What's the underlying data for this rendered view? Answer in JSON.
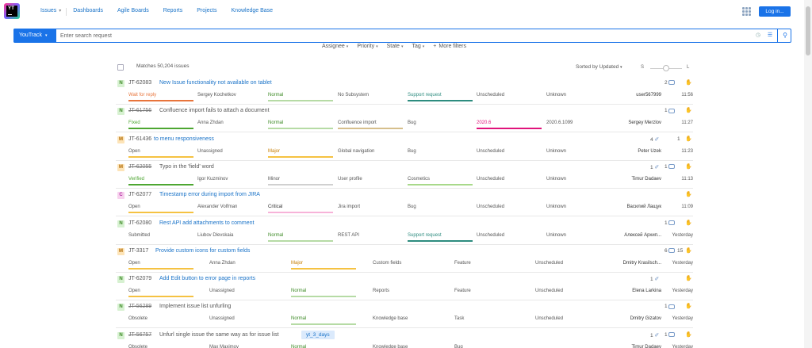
{
  "app": {
    "logo_text": "YT"
  },
  "nav": {
    "issues": "Issues",
    "dashboards": "Dashboards",
    "agile_boards": "Agile Boards",
    "reports": "Reports",
    "projects": "Projects",
    "knowledge_base": "Knowledge Base"
  },
  "header": {
    "login_label": "Log in..."
  },
  "search": {
    "context_label": "YouTrack",
    "placeholder": "Enter search request"
  },
  "filters": {
    "assignee": "Assignee",
    "priority": "Priority",
    "state": "State",
    "tag": "Tag",
    "more": "More filters"
  },
  "list": {
    "matches": "Matches 50,204 issues",
    "sorted": "Sorted by Updated",
    "size_small": "S",
    "size_large": "L"
  },
  "colors": {
    "accent": "#1a73e8",
    "state_wait": "#e8743b",
    "state_fixed": "#4da631",
    "state_open": "#f5c242",
    "state_verified": "#4da631",
    "priority_normal": "#b6dba5",
    "priority_major": "#f5c242",
    "priority_minor": "#d0d0d0",
    "priority_critical": "#f7b3d9",
    "type_support": "#2d8c7f",
    "type_cosmetics": "#a8d98a",
    "version_2020": "#e0137b"
  },
  "issues": [
    {
      "priority_letter": "N",
      "id": "JT-62083",
      "summary": "New Issue functionality not available on tablet",
      "resolved": false,
      "fields": [
        "Wait for reply",
        "Sergey Kochetkov",
        "Normal",
        "No Subsystem",
        "Support request",
        "Unscheduled",
        "Unknown"
      ],
      "attachments": "",
      "comments": "2",
      "votes": "",
      "reporter": "user567999",
      "updated": "11:56"
    },
    {
      "priority_letter": "N",
      "id": "JT-61756",
      "summary": "Confluence import fails to attach a document",
      "resolved": true,
      "fields": [
        "Fixed",
        "Anna Zhdan",
        "Normal",
        "Confluence import",
        "Bug",
        "2020.6",
        "2020.6.1099"
      ],
      "attachments": "",
      "comments": "1",
      "votes": "",
      "reporter": "Sergey Merzlov",
      "updated": "11:27"
    },
    {
      "priority_letter": "M",
      "id": "JT-61436",
      "summary": "to menu responsiveness",
      "resolved": false,
      "fields": [
        "Open",
        "Unassigned",
        "Major",
        "Global navigation",
        "Bug",
        "Unscheduled",
        "Unknown"
      ],
      "attachments": "4",
      "comments": "",
      "votes": "1",
      "reporter": "Peter Uzek",
      "updated": "11:23"
    },
    {
      "priority_letter": "M",
      "id": "JT-62055",
      "summary": "Typo in the 'field' word",
      "resolved": true,
      "fields": [
        "Verified",
        "Igor Kuzminov",
        "Minor",
        "User profile",
        "Cosmetics",
        "Unscheduled",
        "Unknown"
      ],
      "attachments": "1",
      "comments": "1",
      "votes": "",
      "reporter": "Timur Dadaev",
      "updated": "11:13"
    },
    {
      "priority_letter": "C",
      "id": "JT-62077",
      "summary": "Timestamp error during import from JIRA",
      "resolved": false,
      "fields": [
        "Open",
        "Alexander Volfman",
        "Critical",
        "Jira import",
        "Bug",
        "Unscheduled",
        "Unknown"
      ],
      "attachments": "",
      "comments": "",
      "votes": "",
      "reporter": "Василий Лащук",
      "updated": "11:09"
    },
    {
      "priority_letter": "N",
      "id": "JT-62080",
      "summary": "Rest API add attachments to comment",
      "resolved": false,
      "fields": [
        "Submitted",
        "Liubov Dlevskaia",
        "Normal",
        "REST API",
        "Support request",
        "Unscheduled",
        "Unknown"
      ],
      "attachments": "",
      "comments": "1",
      "votes": "",
      "reporter": "Алексей Архип...",
      "updated": "Yesterday"
    },
    {
      "priority_letter": "M",
      "id": "JT-3317",
      "summary": "Provide custom icons for custom fields",
      "resolved": false,
      "fields": [
        "Open",
        "Anna Zhdan",
        "Major",
        "Custom fields",
        "Feature",
        "Unscheduled",
        ""
      ],
      "attachments": "",
      "comments": "6",
      "votes": "15",
      "reporter": "Dmitry Krasilsch...",
      "updated": "Yesterday"
    },
    {
      "priority_letter": "N",
      "id": "JT-62079",
      "summary": "Add Edit button to error page in reports",
      "resolved": false,
      "fields": [
        "Open",
        "Unassigned",
        "Normal",
        "Reports",
        "Feature",
        "Unscheduled",
        ""
      ],
      "attachments": "1",
      "comments": "",
      "votes": "",
      "reporter": "Elena Larkina",
      "updated": "Yesterday"
    },
    {
      "priority_letter": "N",
      "id": "JT-56289",
      "summary": "Implement issue list unfurling",
      "resolved": true,
      "fields": [
        "Obsolete",
        "Unassigned",
        "Normal",
        "Knowledge base",
        "Task",
        "Unscheduled",
        ""
      ],
      "attachments": "",
      "comments": "1",
      "votes": "",
      "reporter": "Dmitry Gizatov",
      "updated": "Yesterday"
    },
    {
      "priority_letter": "N",
      "id": "JT-56757",
      "summary": "Unfurl single issue the same way as for issue list",
      "resolved": true,
      "tag": "yt_3_days",
      "fields": [
        "Obsolete",
        "Max Maximov",
        "Normal",
        "Knowledge base",
        "Bug",
        "",
        ""
      ],
      "attachments": "1",
      "comments": "1",
      "votes": "",
      "reporter": "Timur Dadaev",
      "updated": "Yesterday"
    }
  ]
}
